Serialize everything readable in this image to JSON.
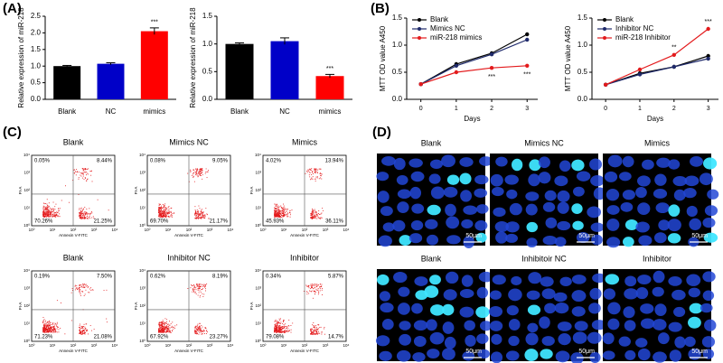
{
  "panel_labels": [
    "(A)",
    "(B)",
    "(C)",
    "(D)"
  ],
  "chart_data": [
    {
      "type": "bar",
      "ylabel": "Relative expression of miR-218",
      "categories": [
        "Blank",
        "NC",
        "mimics"
      ],
      "values": [
        1.0,
        1.07,
        2.05
      ],
      "errors": [
        0.02,
        0.03,
        0.1
      ],
      "colors": [
        "#000000",
        "#0000c8",
        "#ff0000"
      ],
      "ylim": [
        0,
        2.5
      ],
      "yticks": [
        {
          "value": 0,
          "label": "0.0"
        },
        {
          "value": 0.5,
          "label": "0.5"
        },
        {
          "value": 1,
          "label": "1.0"
        },
        {
          "value": 1.5,
          "label": "1.5"
        },
        {
          "value": 2,
          "label": "2.0"
        },
        {
          "value": 2.5,
          "label": "2.5"
        }
      ],
      "annotations": [
        {
          "text": "***",
          "category": 2
        }
      ]
    },
    {
      "type": "bar",
      "ylabel": "Relative expression of miR-218",
      "categories": [
        "Blank",
        "NC",
        "mimics"
      ],
      "values": [
        1.0,
        1.05,
        0.42
      ],
      "errors": [
        0.02,
        0.06,
        0.03
      ],
      "colors": [
        "#000000",
        "#0000c8",
        "#ff0000"
      ],
      "ylim": [
        0,
        1.5
      ],
      "yticks": [
        {
          "value": 0,
          "label": "0.0"
        },
        {
          "value": 0.5,
          "label": "0.5"
        },
        {
          "value": 1,
          "label": "1.0"
        },
        {
          "value": 1.5,
          "label": "1.5"
        }
      ],
      "annotations": [
        {
          "text": "***",
          "category": 2
        }
      ]
    },
    {
      "type": "line",
      "xlabel": "Days",
      "ylabel": "MTT OD value A450",
      "x": [
        0,
        1,
        2,
        3
      ],
      "series": [
        {
          "name": "Blank",
          "color": "#000000",
          "values": [
            0.28,
            0.65,
            0.85,
            1.2
          ]
        },
        {
          "name": "Mimics NC",
          "color": "#1f2a6b",
          "values": [
            0.28,
            0.62,
            0.83,
            1.1
          ]
        },
        {
          "name": "miR-218 mimics",
          "color": "#e31a1c",
          "values": [
            0.28,
            0.5,
            0.58,
            0.62
          ]
        }
      ],
      "xlim": [
        -0.4,
        3.3
      ],
      "xticks": [
        0,
        1,
        2,
        3
      ],
      "ylim": [
        0,
        1.5
      ],
      "yticks": [
        {
          "value": 0,
          "label": "0.0"
        },
        {
          "value": 0.5,
          "label": "0.5"
        },
        {
          "value": 1,
          "label": "1.0"
        },
        {
          "value": 1.5,
          "label": "1.5"
        }
      ],
      "annotations": [
        {
          "text": "***",
          "x": 2,
          "series": 2
        },
        {
          "text": "***",
          "x": 3,
          "series": 2
        }
      ]
    },
    {
      "type": "line",
      "xlabel": "Days",
      "ylabel": "MTT OD value A450",
      "x": [
        0,
        1,
        2,
        3
      ],
      "series": [
        {
          "name": "Blank",
          "color": "#000000",
          "values": [
            0.27,
            0.48,
            0.6,
            0.8
          ]
        },
        {
          "name": "Inhibitor NC",
          "color": "#1f2a6b",
          "values": [
            0.27,
            0.46,
            0.6,
            0.75
          ]
        },
        {
          "name": "miR-218 Inhibitor",
          "color": "#e31a1c",
          "values": [
            0.27,
            0.55,
            0.82,
            1.3
          ]
        }
      ],
      "xlim": [
        -0.4,
        3.3
      ],
      "xticks": [
        0,
        1,
        2,
        3
      ],
      "ylim": [
        0,
        1.5
      ],
      "yticks": [
        {
          "value": 0,
          "label": "0.0"
        },
        {
          "value": 0.5,
          "label": "0.5"
        },
        {
          "value": 1,
          "label": "1.0"
        },
        {
          "value": 1.5,
          "label": "1.5"
        }
      ],
      "annotations": [
        {
          "text": "**",
          "x": 2,
          "series": 2
        },
        {
          "text": "***",
          "x": 3,
          "series": 2
        }
      ]
    }
  ],
  "flow": {
    "xlabel": "Annexin V-FITC",
    "ylabel": "PI-A",
    "ticks": [
      "10⁰",
      "10¹",
      "10²",
      "10³",
      "10⁴"
    ],
    "panels": [
      {
        "title": "Blank",
        "quadrants": [
          "0.05%",
          "8.44%",
          "70.26%",
          "21.25%"
        ]
      },
      {
        "title": "Mimics NC",
        "quadrants": [
          "0.08%",
          "9.05%",
          "69.70%",
          "21.17%"
        ]
      },
      {
        "title": "Mimics",
        "quadrants": [
          "4.02%",
          "13.94%",
          "45.93%",
          "36.11%"
        ]
      },
      {
        "title": "Blank",
        "quadrants": [
          "0.19%",
          "7.50%",
          "71.23%",
          "21.08%"
        ]
      },
      {
        "title": "Inhibitor NC",
        "quadrants": [
          "0.62%",
          "8.19%",
          "67.92%",
          "23.27%"
        ]
      },
      {
        "title": "Inhibitor",
        "quadrants": [
          "0.34%",
          "5.87%",
          "79.08%",
          "14.7%"
        ]
      }
    ]
  },
  "images": {
    "scale_bar": "50μm",
    "titles": [
      "Blank",
      "Mimics NC",
      "Mimics",
      "Blank",
      "Inhibitoir NC",
      "Inhibitor"
    ]
  }
}
